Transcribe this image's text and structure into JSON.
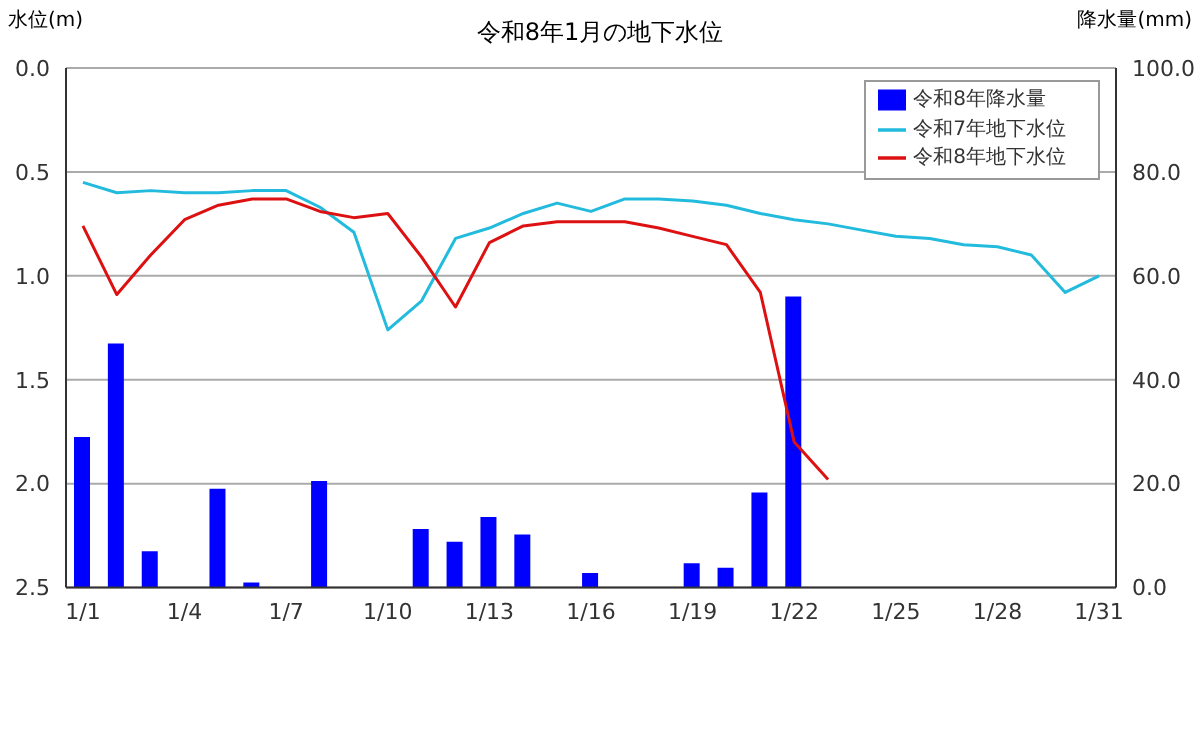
{
  "chart_data": {
    "type": "line",
    "title": "令和8年1月の地下水位",
    "ylabel": "水位(m)",
    "y2label": "降水量(mm)",
    "categories": [
      "1/1",
      null,
      null,
      "1/4",
      null,
      null,
      "1/7",
      null,
      null,
      "1/10",
      null,
      null,
      "1/13",
      null,
      null,
      "1/16",
      null,
      null,
      "1/19",
      null,
      null,
      "1/22",
      null,
      null,
      "1/25",
      null,
      null,
      "1/28",
      null,
      null,
      "1/31"
    ],
    "series": [
      {
        "name": "令和8年降水量",
        "type": "bar",
        "axis": "y2",
        "color": "#0000ff",
        "values": [
          29,
          47,
          7,
          0,
          19,
          1,
          0,
          20.5,
          0,
          0,
          11.3,
          8.8,
          13.6,
          10.2,
          0,
          2.8,
          0,
          0,
          4.7,
          3.8,
          18.3,
          56,
          null,
          null,
          null,
          null,
          null,
          null,
          null,
          null,
          null
        ]
      },
      {
        "name": "令和7年地下水位",
        "color": "#22bbdd",
        "values": [
          0.55,
          0.6,
          0.59,
          0.6,
          0.6,
          0.59,
          0.59,
          0.67,
          0.79,
          1.26,
          1.12,
          0.82,
          0.77,
          0.7,
          0.65,
          0.69,
          0.63,
          0.63,
          0.64,
          0.66,
          0.7,
          0.73,
          0.75,
          0.78,
          0.81,
          0.82,
          0.85,
          0.86,
          0.9,
          1.08,
          1.0
        ]
      },
      {
        "name": "令和8年地下水位",
        "color": "#dd1111",
        "values": [
          0.76,
          1.09,
          0.9,
          0.73,
          0.66,
          0.63,
          0.63,
          0.69,
          0.72,
          0.7,
          0.91,
          1.15,
          0.84,
          0.76,
          0.74,
          0.74,
          0.74,
          0.77,
          0.81,
          0.85,
          1.08,
          1.8,
          1.98,
          null,
          null,
          null,
          null,
          null,
          null,
          null,
          null
        ]
      }
    ],
    "ylim": [
      2.5,
      0
    ],
    "yticks": [
      {
        "value": 0,
        "label": "0.0"
      },
      {
        "value": 0.5,
        "label": "0.5"
      },
      {
        "value": 1,
        "label": "1.0"
      },
      {
        "value": 1.5,
        "label": "1.5"
      },
      {
        "value": 2,
        "label": "2.0"
      },
      {
        "value": 2.5,
        "label": "2.5"
      }
    ],
    "y2lim": [
      0,
      100
    ],
    "y2ticks": [
      {
        "value": 0,
        "label": "0.0"
      },
      {
        "value": 20,
        "label": "20.0"
      },
      {
        "value": 40,
        "label": "40.0"
      },
      {
        "value": 60,
        "label": "60.0"
      },
      {
        "value": 80,
        "label": "80.0"
      },
      {
        "value": 100,
        "label": "100.0"
      }
    ],
    "grid": "y",
    "legend": "top right",
    "marker": "none",
    "line_style": "solid"
  }
}
